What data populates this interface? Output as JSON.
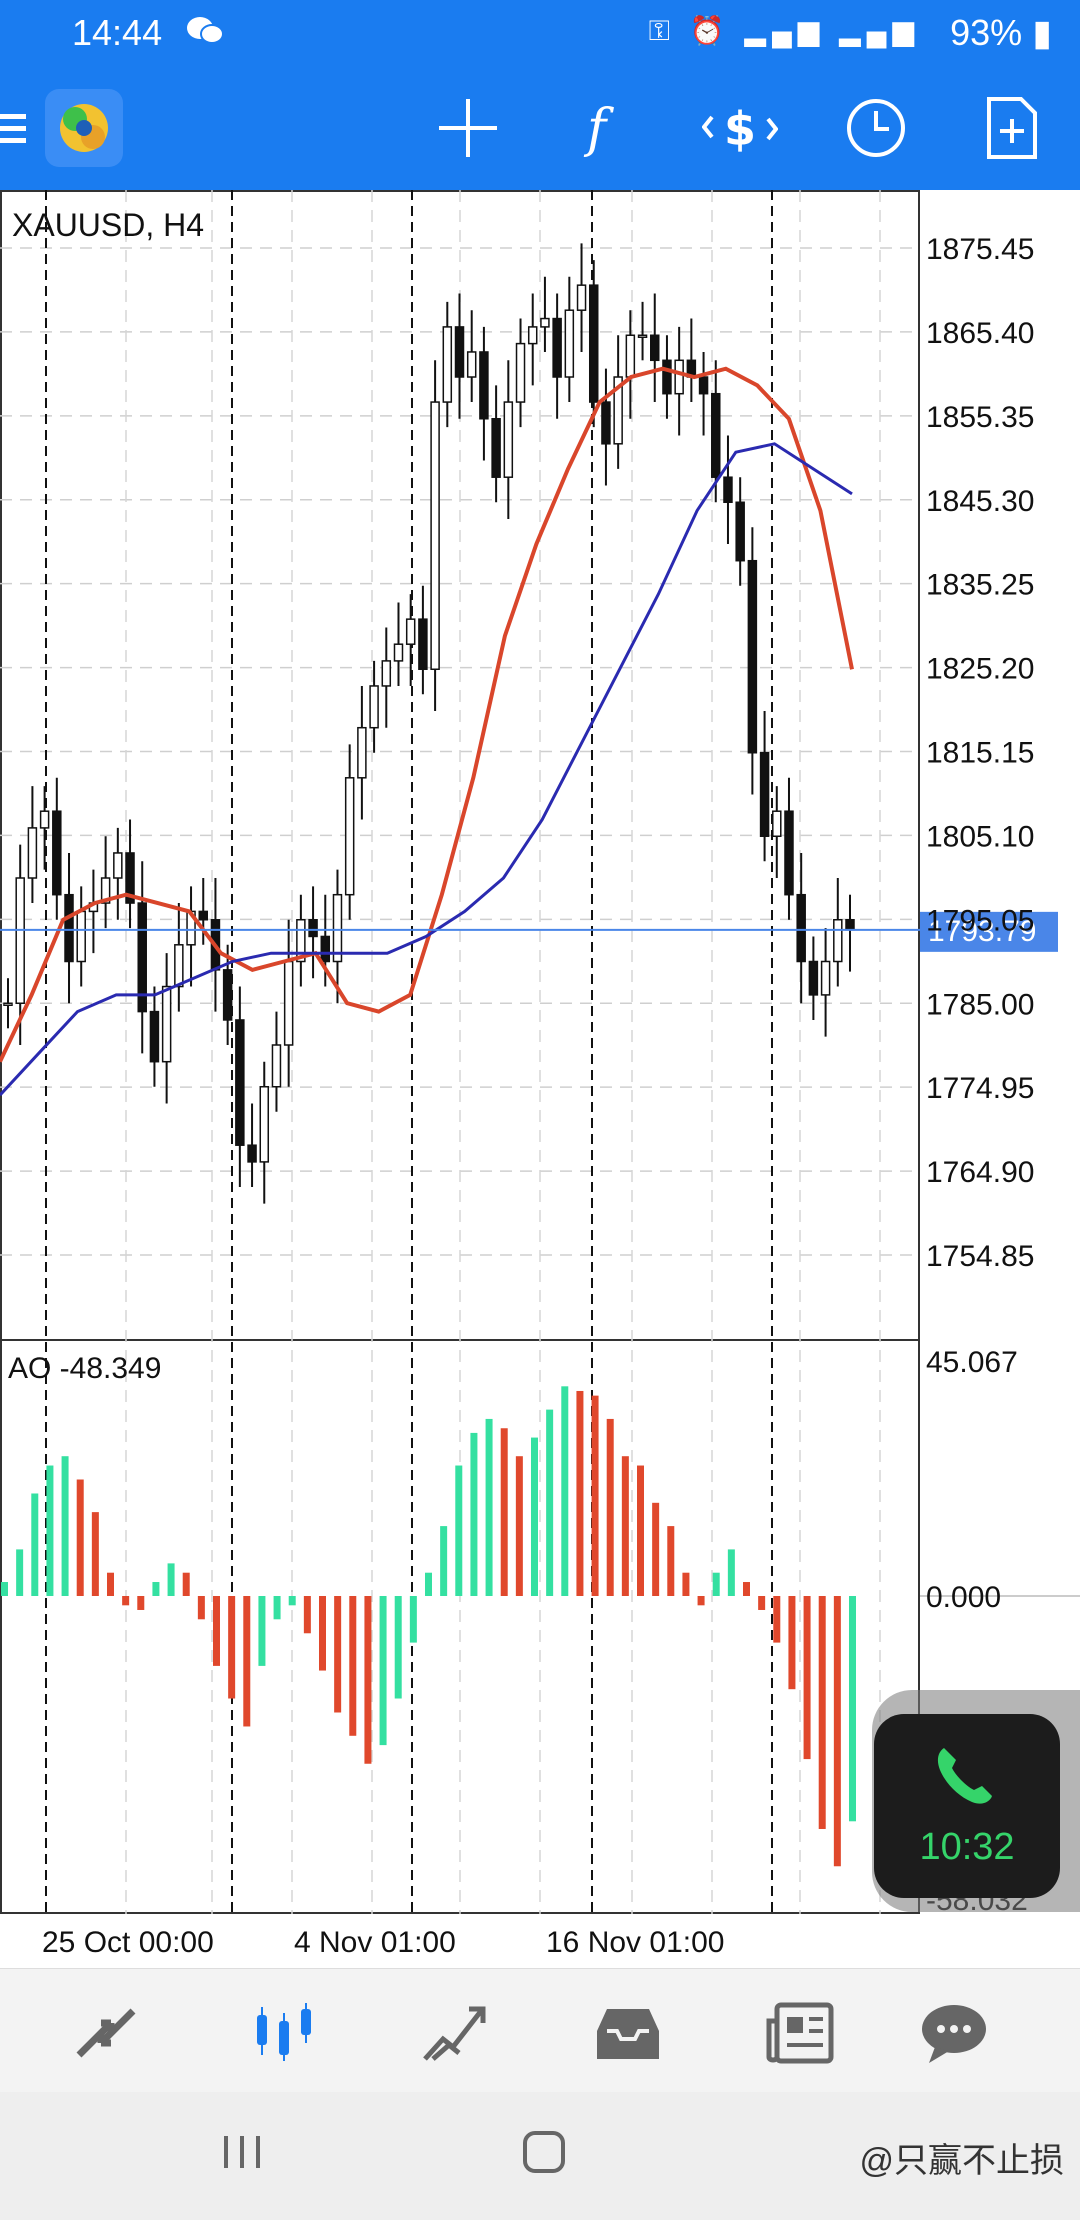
{
  "status_bar": {
    "time": "14:44",
    "battery": "93%"
  },
  "toolbar": {
    "icons": [
      "menu-icon",
      "app-logo-icon",
      "crosshair-icon",
      "function-icon",
      "trade-icon",
      "clock-icon",
      "add-document-icon"
    ]
  },
  "chart": {
    "symbol_label": "XAUUSD, H4",
    "price_ticks": [
      "1875.45",
      "1865.40",
      "1855.35",
      "1845.30",
      "1835.25",
      "1825.20",
      "1815.15",
      "1805.10",
      "1785.00",
      "1774.95",
      "1764.90",
      "1754.85"
    ],
    "hidden_tick": "1795.05",
    "current_price": "1793.79",
    "date_labels": [
      "25 Oct 00:00",
      "4 Nov 01:00",
      "16 Nov 01:00"
    ],
    "indicator_label": "AO -48.349",
    "ao_ticks": {
      "top": "45.067",
      "zero": "0.000",
      "bottom": "-58.032"
    },
    "colors": {
      "ma_fast": "#d9462b",
      "ma_slow": "#2a2ab0",
      "price_line": "#4a86e8",
      "ao_up": "#34e0a1",
      "ao_down": "#e0482c",
      "accent": "#1a7cf0"
    }
  },
  "chart_data": {
    "type": "candlestick",
    "symbol": "XAUUSD",
    "timeframe": "H4",
    "ylim": [
      1750,
      1880
    ],
    "current_price": 1793.79,
    "approx_close_path": [
      1785,
      1800,
      1806,
      1808,
      1798,
      1790,
      1796,
      1797,
      1800,
      1803,
      1797,
      1784,
      1778,
      1787,
      1792,
      1796,
      1795,
      1789,
      1783,
      1768,
      1766,
      1775,
      1780,
      1790,
      1795,
      1793,
      1790,
      1798,
      1812,
      1818,
      1823,
      1826,
      1828,
      1831,
      1825,
      1857,
      1866,
      1860,
      1863,
      1855,
      1848,
      1857,
      1864,
      1866,
      1867,
      1860,
      1868,
      1871,
      1857,
      1852,
      1860,
      1865,
      1865,
      1862,
      1858,
      1862,
      1860,
      1858,
      1848,
      1845,
      1838,
      1815,
      1805,
      1808,
      1798,
      1790,
      1786,
      1790,
      1795,
      1793.79
    ],
    "ma_fast": [
      1778,
      1786,
      1795,
      1797,
      1798,
      1797,
      1796,
      1791,
      1789,
      1790,
      1791,
      1785,
      1784,
      1786,
      1798,
      1812,
      1829,
      1840,
      1849,
      1857,
      1860,
      1861,
      1860,
      1861,
      1859,
      1855,
      1844,
      1825
    ],
    "ma_slow": [
      1774,
      1779,
      1784,
      1786,
      1786,
      1788,
      1790,
      1791,
      1791,
      1791,
      1791,
      1793,
      1796,
      1800,
      1807,
      1816,
      1825,
      1834,
      1844,
      1851,
      1852,
      1849,
      1846
    ],
    "ao_values": [
      3,
      10,
      22,
      28,
      30,
      25,
      18,
      5,
      -2,
      -3,
      3,
      7,
      5,
      -5,
      -15,
      -22,
      -28,
      -15,
      -5,
      -2,
      -8,
      -16,
      -25,
      -30,
      -36,
      -32,
      -22,
      -10,
      5,
      15,
      28,
      35,
      38,
      36,
      30,
      34,
      40,
      45,
      44,
      43,
      38,
      30,
      28,
      20,
      15,
      5,
      -2,
      5,
      10,
      3,
      -3,
      -10,
      -20,
      -35,
      -50,
      -58,
      -48.349
    ],
    "ao_range": [
      -58.032,
      45.067
    ]
  }
}
